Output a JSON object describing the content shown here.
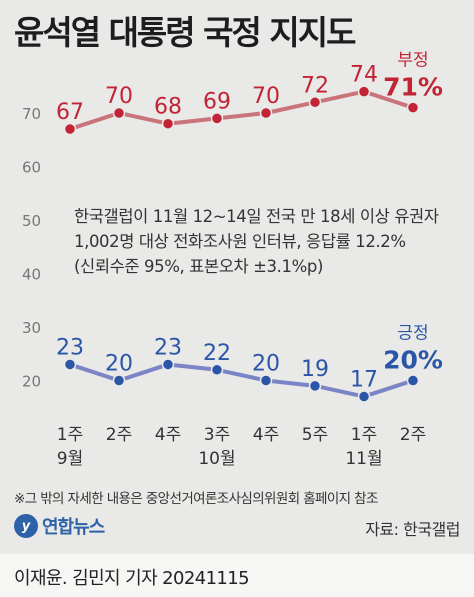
{
  "title": "윤석열 대통령 국정 지지도",
  "chart_data": {
    "type": "line",
    "categories": [
      {
        "week": "1주",
        "month": "9월"
      },
      {
        "week": "2주",
        "month": ""
      },
      {
        "week": "4주",
        "month": ""
      },
      {
        "week": "3주",
        "month": "10월"
      },
      {
        "week": "4주",
        "month": ""
      },
      {
        "week": "5주",
        "month": ""
      },
      {
        "week": "1주",
        "month": "11월"
      },
      {
        "week": "2주",
        "month": ""
      }
    ],
    "series": [
      {
        "name": "부정",
        "latest_label": "71%",
        "color": "#c9737a",
        "label_color": "#c22436",
        "values": [
          67,
          70,
          68,
          69,
          70,
          72,
          74,
          71
        ]
      },
      {
        "name": "긍정",
        "latest_label": "20%",
        "color": "#7b84c6",
        "label_color": "#2b56a8",
        "values": [
          23,
          20,
          23,
          22,
          20,
          19,
          17,
          20
        ]
      }
    ],
    "y_ticks": [
      20,
      30,
      40,
      50,
      60,
      70
    ],
    "ylim": [
      10,
      80
    ],
    "grid": false
  },
  "survey_note": [
    "한국갤럽이 11월 12~14일 전국 만 18세 이상 유권자",
    "1,002명 대상 전화조사원 인터뷰, 응답률 12.2%",
    "(신뢰수준 95%, 표본오차 ±3.1%p)"
  ],
  "footnote": "※그 밖의 자세한 내용은 중앙선거여론조사심의위원회 홈페이지 참조",
  "logo_text": "연합뉴스",
  "source": "자료: 한국갤럽",
  "credit": "이재윤. 김민지 기자  20241115"
}
